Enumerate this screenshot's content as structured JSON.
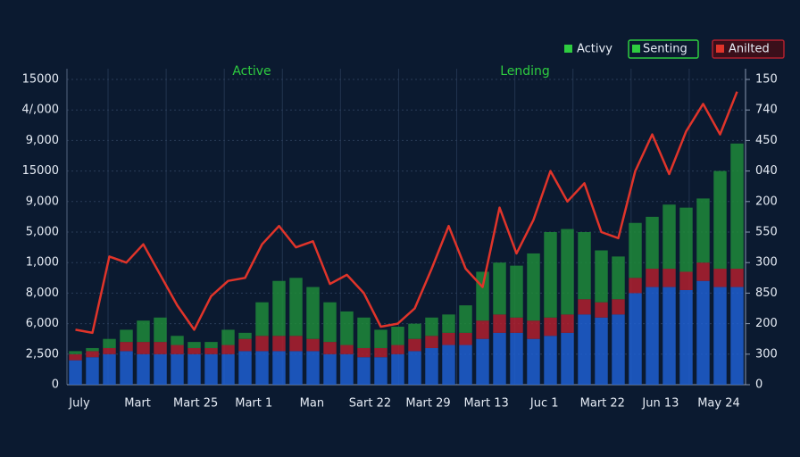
{
  "chart_data": {
    "type": "stacked_bar_line",
    "annotations": [
      {
        "text": "Active",
        "color": "#2ecc40"
      },
      {
        "text": "Lending",
        "color": "#2ecc40"
      }
    ],
    "x_labels": [
      "July",
      "Mart",
      "Mart 25",
      "Mart 1",
      "Man",
      "Sart 22",
      "Mart 29",
      "Mart 13",
      "Juc 1",
      "Mart 22",
      "Jun 13",
      "May 24"
    ],
    "ylim": [
      0,
      10
    ],
    "yticks": [
      0,
      {
        "value": 1,
        "label": "2,500"
      },
      {
        "value": 2,
        "label": "6,000"
      },
      {
        "value": 3,
        "label": "8,000"
      },
      {
        "value": 4,
        "label": "1,000"
      },
      {
        "value": 5,
        "label": "5,000"
      },
      {
        "value": 6,
        "label": "9,000"
      },
      {
        "value": 7,
        "label": "15000"
      },
      {
        "value": 8,
        "label": "9,000"
      },
      {
        "value": 9,
        "label": "4/,000"
      },
      {
        "value": 10,
        "label": "15000"
      }
    ],
    "y2lim": [
      0,
      10
    ],
    "y2ticks": [
      0,
      {
        "value": 1,
        "label": "300"
      },
      {
        "value": 2,
        "label": "200"
      },
      {
        "value": 3,
        "label": "850"
      },
      {
        "value": 4,
        "label": "300"
      },
      {
        "value": 5,
        "label": "550"
      },
      {
        "value": 6,
        "label": "200"
      },
      {
        "value": 7,
        "label": "040"
      },
      {
        "value": 8,
        "label": "450"
      },
      {
        "value": 9,
        "label": "740"
      },
      {
        "value": 10,
        "label": "150"
      }
    ],
    "grid": true,
    "legend": "top-right",
    "series": [
      {
        "kind": "bar",
        "color": "#1f5fd0",
        "values": [
          0.8,
          0.9,
          1.0,
          1.1,
          1.0,
          1.0,
          1.0,
          1.0,
          1.0,
          1.0,
          1.1,
          1.1,
          1.1,
          1.1,
          1.1,
          1.0,
          1.0,
          0.9,
          0.9,
          1.0,
          1.1,
          1.2,
          1.3,
          1.3,
          1.5,
          1.7,
          1.7,
          1.5,
          1.6,
          1.7,
          2.3,
          2.2,
          2.3,
          3.0,
          3.2,
          3.2,
          3.1,
          3.4,
          3.2,
          3.2
        ]
      },
      {
        "name": "Anilted",
        "kind": "bar",
        "color": "#b0202e",
        "values": [
          0.2,
          0.2,
          0.2,
          0.3,
          0.4,
          0.4,
          0.3,
          0.2,
          0.2,
          0.3,
          0.4,
          0.5,
          0.5,
          0.5,
          0.4,
          0.4,
          0.3,
          0.3,
          0.3,
          0.3,
          0.4,
          0.4,
          0.4,
          0.4,
          0.6,
          0.6,
          0.5,
          0.6,
          0.6,
          0.6,
          0.5,
          0.5,
          0.5,
          0.5,
          0.6,
          0.6,
          0.6,
          0.6,
          0.6,
          0.6
        ]
      },
      {
        "name": "Activy",
        "kind": "bar",
        "color": "#1f8a3a",
        "values": [
          0.1,
          0.1,
          0.3,
          0.4,
          0.7,
          0.8,
          0.3,
          0.2,
          0.2,
          0.5,
          0.2,
          1.1,
          1.8,
          1.9,
          1.7,
          1.3,
          1.1,
          1.0,
          0.6,
          0.6,
          0.5,
          0.6,
          0.6,
          0.9,
          1.6,
          1.7,
          1.7,
          2.2,
          2.8,
          2.8,
          2.2,
          1.7,
          1.4,
          1.8,
          1.7,
          2.1,
          2.1,
          2.1,
          3.2,
          4.1
        ]
      },
      {
        "name": "Senting",
        "kind": "line",
        "color": "#e0342a",
        "values": [
          1.8,
          1.7,
          4.2,
          4.0,
          4.6,
          3.6,
          2.6,
          1.8,
          2.9,
          3.4,
          3.5,
          4.6,
          5.2,
          4.5,
          4.7,
          3.3,
          3.6,
          3.0,
          1.9,
          2.0,
          2.5,
          3.8,
          5.2,
          3.8,
          3.2,
          5.8,
          4.3,
          5.4,
          7.0,
          6.0,
          6.6,
          5.0,
          4.8,
          7.0,
          8.2,
          6.9,
          8.3,
          9.2,
          8.2,
          9.6
        ]
      }
    ]
  }
}
